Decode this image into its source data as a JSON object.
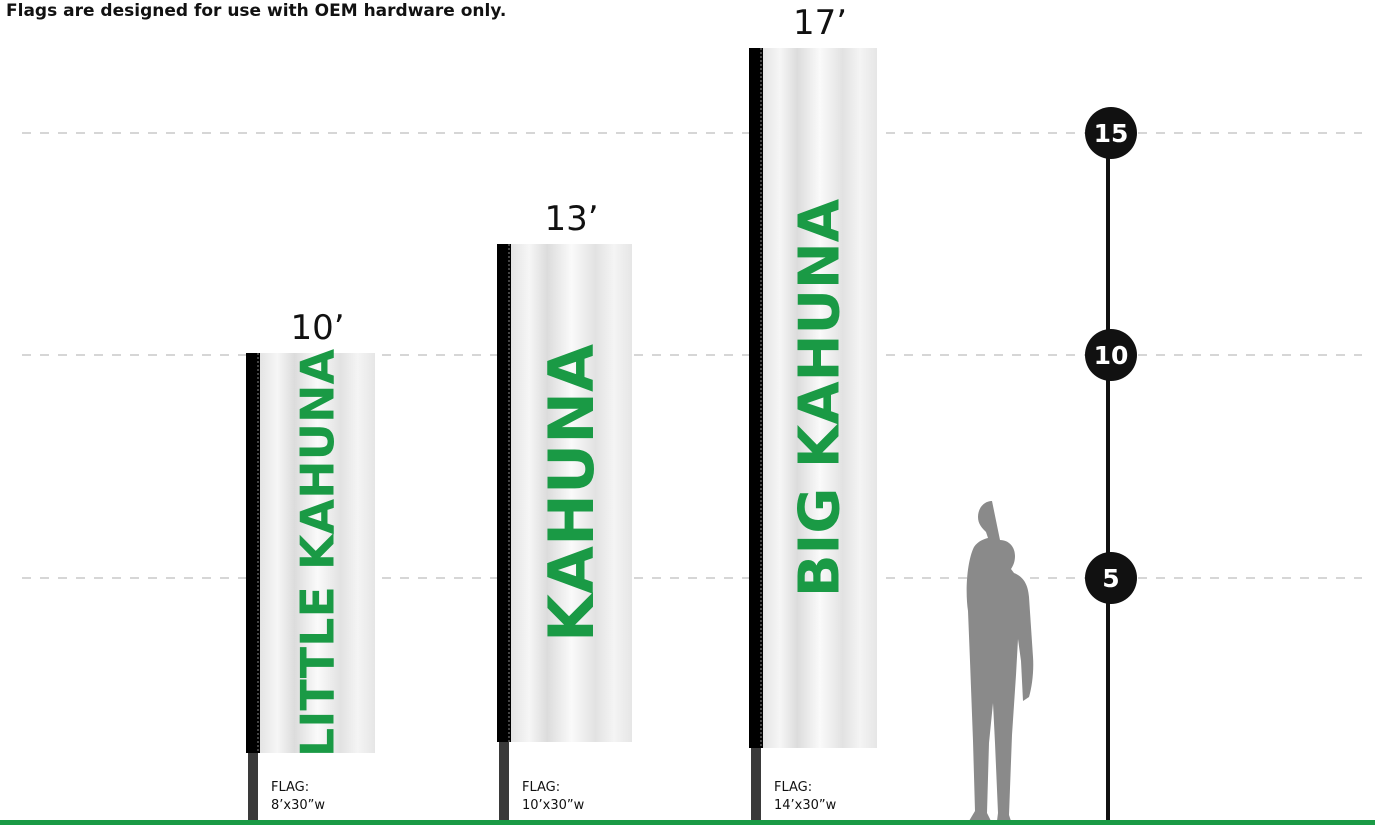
{
  "note": "Flags are designed for use with OEM hardware only.",
  "flags": [
    {
      "height": "10’",
      "name": "LITTLE KAHUNA",
      "spec_label": "FLAG:",
      "spec": "8’x30”w"
    },
    {
      "height": "13’",
      "name": "KAHUNA",
      "spec_label": "FLAG:",
      "spec": "10’x30”w"
    },
    {
      "height": "17’",
      "name": "BIG KAHUNA",
      "spec_label": "FLAG:",
      "spec": "14’x30”w"
    }
  ],
  "scale": [
    "15",
    "10",
    "5"
  ]
}
